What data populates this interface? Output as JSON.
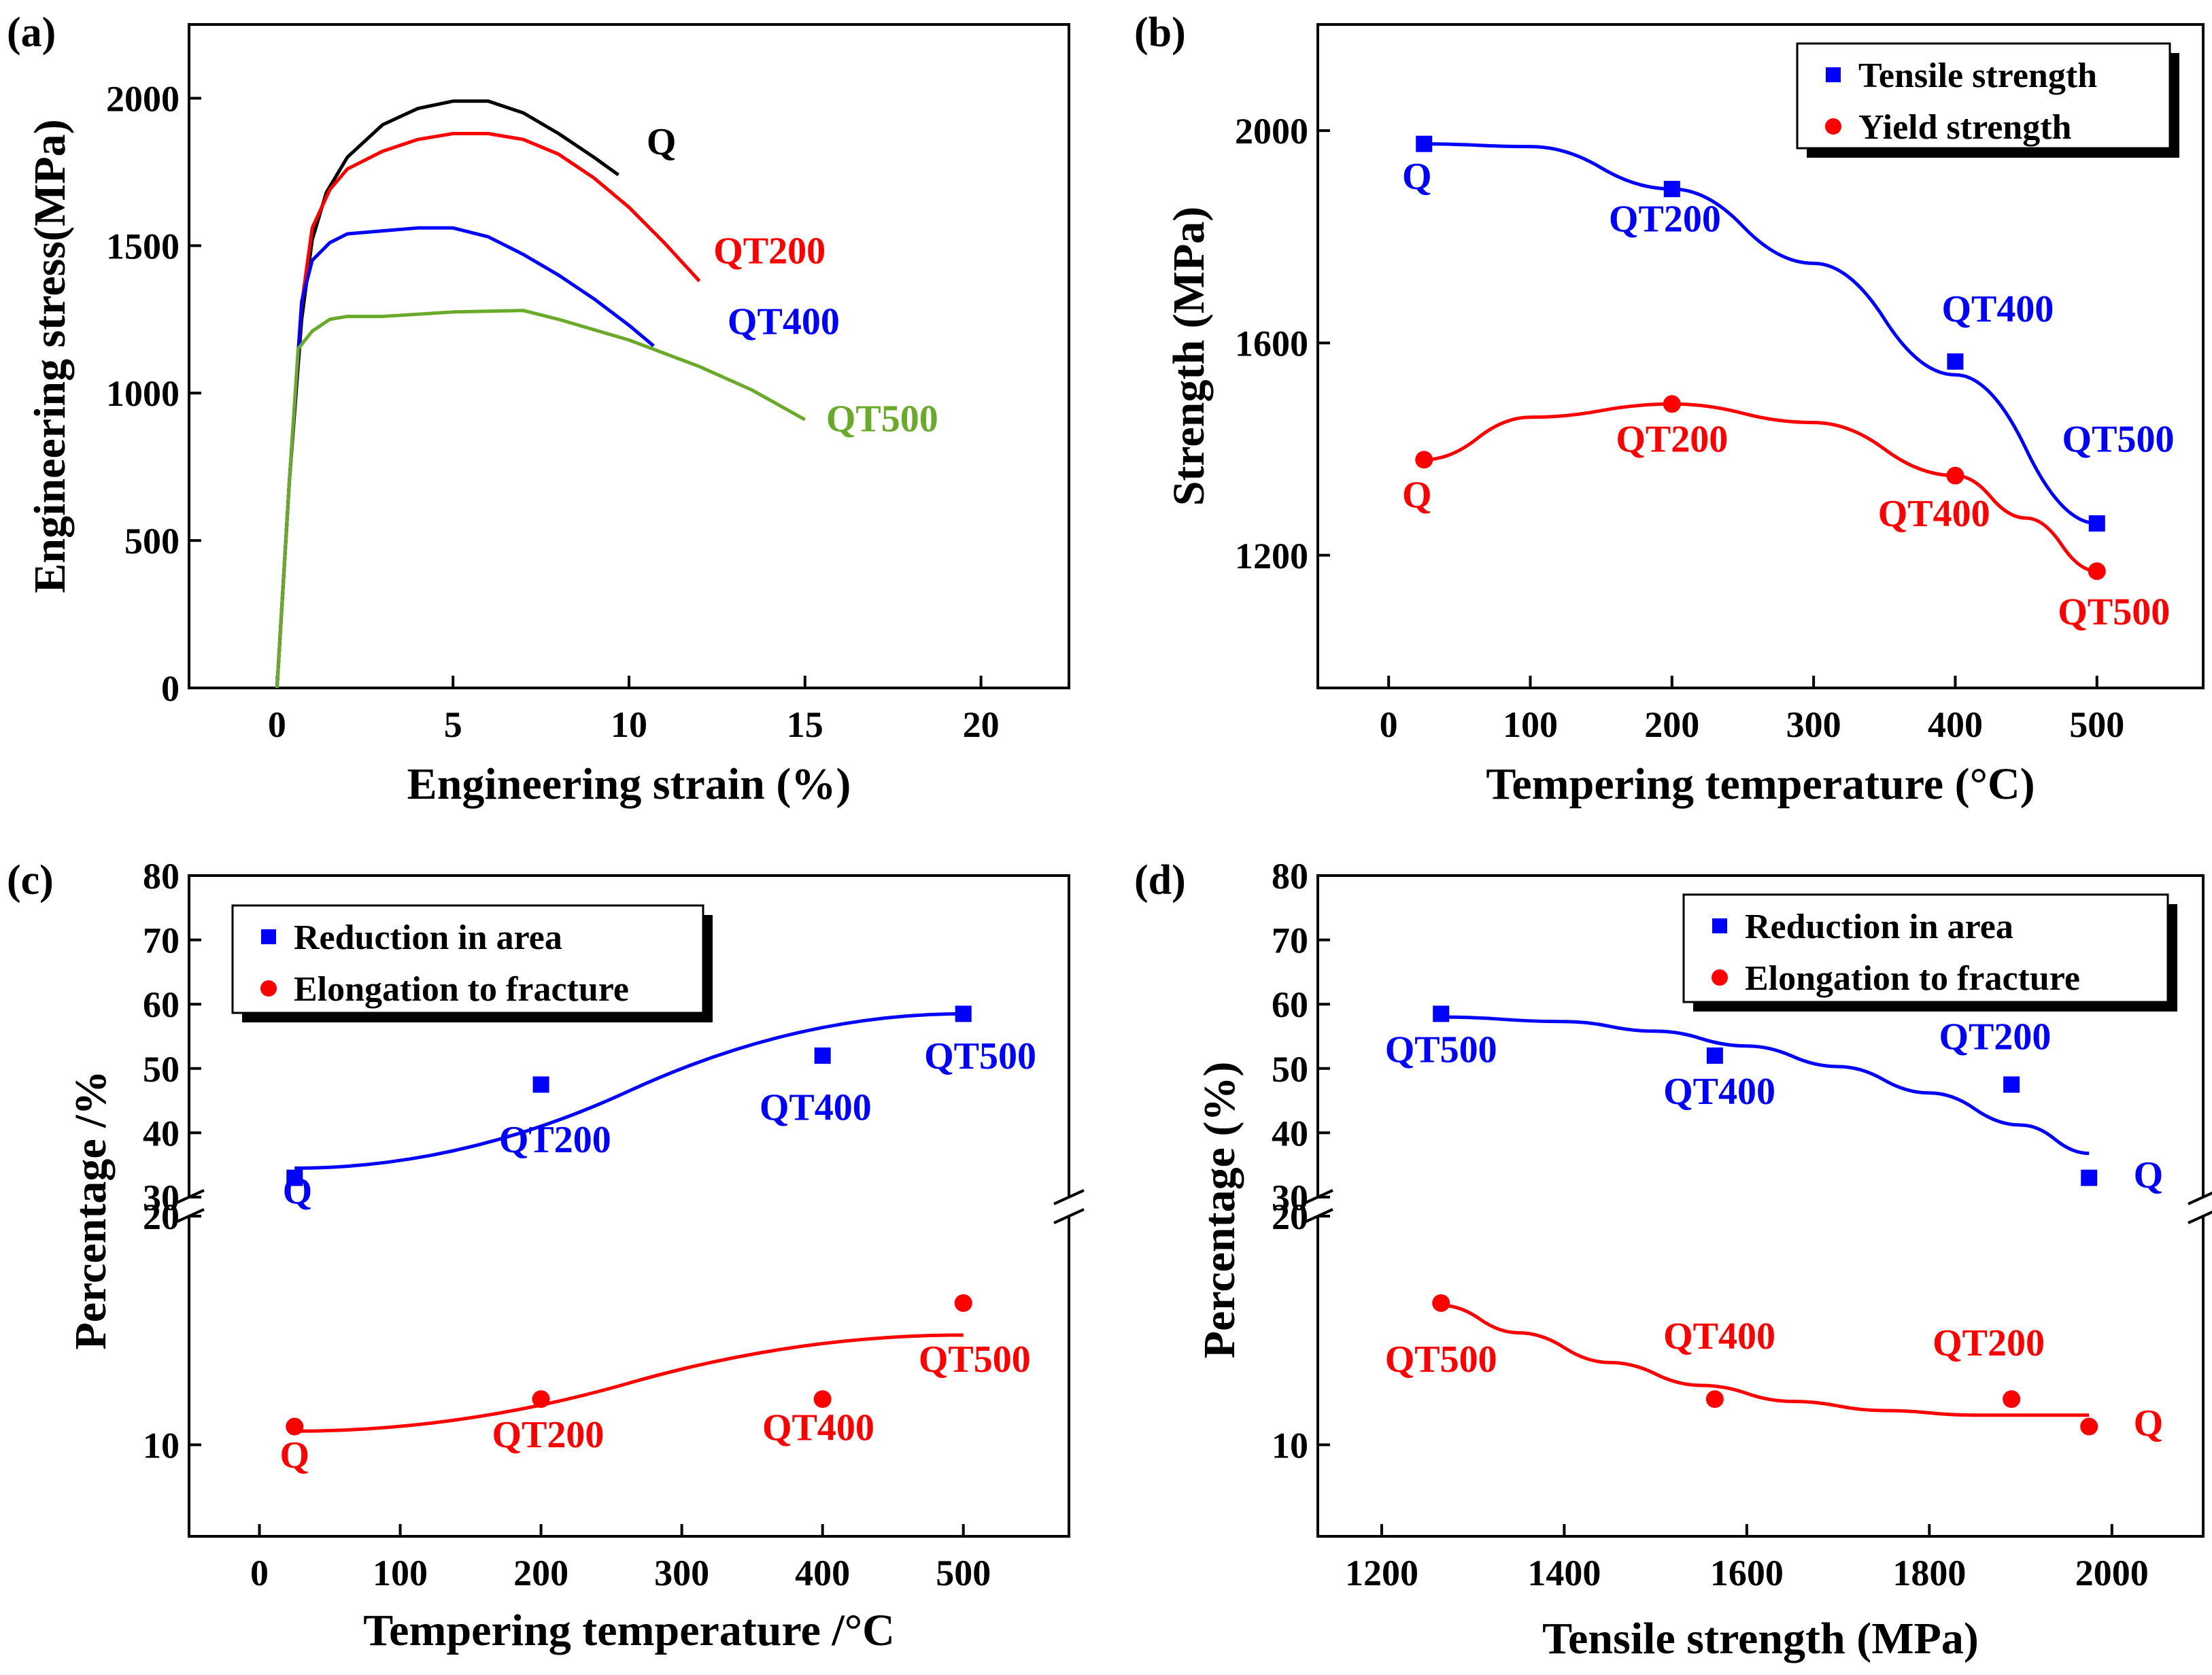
{
  "chart_data": [
    {
      "panel": "(a)",
      "type": "line",
      "xlabel": "Engineering strain (%)",
      "ylabel": "Engineering stress(MPa)",
      "xlim": [
        -2.5,
        22.5
      ],
      "ylim": [
        0,
        2250
      ],
      "xticks": [
        0,
        5,
        10,
        15,
        20
      ],
      "xtick_labels": [
        "0",
        "5",
        "10",
        "15",
        "20"
      ],
      "yticks": [
        0,
        500,
        1000,
        1500,
        2000
      ],
      "ytick_labels": [
        "0",
        "500",
        "1000",
        "1500",
        "2000"
      ],
      "series": [
        {
          "name": "Q",
          "label": "Q",
          "color": "#000000",
          "label_at": [
            10.5,
            1810
          ],
          "x": [
            0,
            0.35,
            0.7,
            1.0,
            1.4,
            2.0,
            3.0,
            4.0,
            5.0,
            6.0,
            7.0,
            8.0,
            9.0,
            9.7
          ],
          "y": [
            0,
            700,
            1250,
            1520,
            1680,
            1800,
            1910,
            1965,
            1990,
            1990,
            1950,
            1880,
            1800,
            1740
          ]
        },
        {
          "name": "QT200",
          "label": "QT200",
          "color": "#ff0000",
          "label_at": [
            12.4,
            1440
          ],
          "x": [
            0,
            0.35,
            0.7,
            1.0,
            1.5,
            2.0,
            3.0,
            4.0,
            5.0,
            6.0,
            7.0,
            8.0,
            9.0,
            10.0,
            11.0,
            12.0
          ],
          "y": [
            0,
            700,
            1300,
            1560,
            1690,
            1760,
            1820,
            1860,
            1880,
            1880,
            1860,
            1810,
            1730,
            1630,
            1510,
            1380
          ]
        },
        {
          "name": "QT400",
          "label": "QT400",
          "color": "#0000ff",
          "label_at": [
            12.8,
            1200
          ],
          "x": [
            0,
            0.35,
            0.7,
            1.0,
            1.5,
            2.0,
            3.0,
            4.0,
            5.0,
            6.0,
            7.0,
            8.0,
            9.0,
            10.0,
            10.7
          ],
          "y": [
            0,
            700,
            1310,
            1450,
            1510,
            1540,
            1550,
            1560,
            1560,
            1530,
            1470,
            1400,
            1320,
            1230,
            1160
          ]
        },
        {
          "name": "QT500",
          "label": "QT500",
          "color": "#6aaa2a",
          "label_at": [
            15.6,
            870
          ],
          "x": [
            0,
            0.35,
            0.6,
            1.0,
            1.5,
            2.0,
            3.0,
            5.0,
            7.0,
            8.0,
            10.0,
            12.0,
            13.5,
            15.0
          ],
          "y": [
            0,
            700,
            1150,
            1210,
            1250,
            1260,
            1260,
            1275,
            1280,
            1250,
            1180,
            1090,
            1010,
            910
          ]
        }
      ],
      "annotations": []
    },
    {
      "panel": "(b)",
      "type": "scatter",
      "xlabel": "Tempering temperature (°C)",
      "ylabel": "Strength (MPa)",
      "xlim": [
        -50,
        575
      ],
      "ylim": [
        950,
        2200
      ],
      "xticks": [
        0,
        100,
        200,
        300,
        400,
        500
      ],
      "xtick_labels": [
        "0",
        "100",
        "200",
        "300",
        "400",
        "500"
      ],
      "yticks": [
        1200,
        1600,
        2000
      ],
      "ytick_labels": [
        "1200",
        "1600",
        "2000"
      ],
      "legend_position": "top-right",
      "series": [
        {
          "name": "Tensile strength",
          "marker": "square",
          "color": "#0000ff",
          "x": [
            25,
            200,
            400,
            500
          ],
          "y": [
            1975,
            1890,
            1565,
            1260
          ],
          "fit": {
            "x": [
              25,
              100,
              200,
              300,
              400,
              500
            ],
            "y": [
              1975,
              1970,
              1890,
              1750,
              1540,
              1260
            ]
          }
        },
        {
          "name": "Yield strength",
          "marker": "circle",
          "color": "#ff0000",
          "x": [
            25,
            200,
            400,
            500
          ],
          "y": [
            1380,
            1485,
            1350,
            1170
          ],
          "fit": {
            "x": [
              25,
              100,
              200,
              300,
              400,
              450,
              500
            ],
            "y": [
              1380,
              1460,
              1485,
              1450,
              1350,
              1270,
              1170
            ]
          }
        }
      ],
      "annotations": [
        {
          "text": "Q",
          "color": "#0000ff",
          "x": 20,
          "y": 1890
        },
        {
          "text": "QT200",
          "color": "#0000ff",
          "x": 195,
          "y": 1810
        },
        {
          "text": "QT400",
          "color": "#0000ff",
          "x": 430,
          "y": 1640
        },
        {
          "text": "QT500",
          "color": "#0000ff",
          "x": 515,
          "y": 1395
        },
        {
          "text": "Q",
          "color": "#ff0000",
          "x": 20,
          "y": 1290
        },
        {
          "text": "QT200",
          "color": "#ff0000",
          "x": 200,
          "y": 1395
        },
        {
          "text": "QT400",
          "color": "#ff0000",
          "x": 385,
          "y": 1255
        },
        {
          "text": "QT500",
          "color": "#ff0000",
          "x": 512,
          "y": 1070
        }
      ]
    },
    {
      "panel": "(c)",
      "type": "scatter",
      "xlabel": "Tempering temperature /°C",
      "ylabel": "Percentage /%",
      "xlim": [
        -50,
        575
      ],
      "ylim_lower": [
        6,
        20
      ],
      "ylim_upper": [
        30,
        80
      ],
      "xticks": [
        0,
        100,
        200,
        300,
        400,
        500
      ],
      "xtick_labels": [
        "0",
        "100",
        "200",
        "300",
        "400",
        "500"
      ],
      "yticks_lower": [
        10,
        20
      ],
      "ytick_labels_lower": [
        "10",
        "20"
      ],
      "yticks_upper": [
        30,
        40,
        50,
        60,
        70,
        80
      ],
      "ytick_labels_upper": [
        "30",
        "40",
        "50",
        "60",
        "70",
        "80"
      ],
      "legend_position": "top-left",
      "series": [
        {
          "name": "Reduction in area",
          "marker": "square",
          "color": "#0000ff",
          "x": [
            25,
            200,
            400,
            500
          ],
          "y": [
            33,
            47.5,
            52,
            58.5
          ],
          "fit": {
            "x": [
              25,
              500
            ],
            "y": [
              34.5,
              58.5
            ]
          }
        },
        {
          "name": "Elongation to fracture",
          "marker": "circle",
          "color": "#ff0000",
          "x": [
            25,
            200,
            400,
            500
          ],
          "y": [
            10.8,
            12,
            12,
            16.2
          ],
          "fit": {
            "x": [
              25,
              500
            ],
            "y": [
              10.6,
              14.8
            ]
          }
        }
      ],
      "annotations": [
        {
          "text": "Q",
          "color": "#0000ff",
          "x": 27,
          "y": 29
        },
        {
          "text": "QT200",
          "color": "#0000ff",
          "x": 210,
          "y": 37
        },
        {
          "text": "QT400",
          "color": "#0000ff",
          "x": 395,
          "y": 42
        },
        {
          "text": "QT500",
          "color": "#0000ff",
          "x": 512,
          "y": 50
        },
        {
          "text": "Q",
          "color": "#ff0000",
          "x": 25,
          "y": 9.0
        },
        {
          "text": "QT200",
          "color": "#ff0000",
          "x": 205,
          "y": 9.9
        },
        {
          "text": "QT400",
          "color": "#ff0000",
          "x": 397,
          "y": 10.2
        },
        {
          "text": "QT500",
          "color": "#ff0000",
          "x": 508,
          "y": 13.2
        }
      ]
    },
    {
      "panel": "(d)",
      "type": "scatter",
      "xlabel": "Tensile strength (MPa)",
      "ylabel": "Percentage (%)",
      "xlim": [
        1130,
        2100
      ],
      "ylim_lower": [
        6,
        20
      ],
      "ylim_upper": [
        30,
        80
      ],
      "xticks": [
        1200,
        1400,
        1600,
        1800,
        2000
      ],
      "xtick_labels": [
        "1200",
        "1400",
        "1600",
        "1800",
        "2000"
      ],
      "yticks_lower": [
        10,
        20
      ],
      "ytick_labels_lower": [
        "10",
        "20"
      ],
      "yticks_upper": [
        30,
        40,
        50,
        60,
        70,
        80
      ],
      "ytick_labels_upper": [
        "30",
        "40",
        "50",
        "60",
        "70",
        "80"
      ],
      "legend_position": "top-right",
      "series": [
        {
          "name": "Reduction in area",
          "marker": "square",
          "color": "#0000ff",
          "x": [
            1265,
            1565,
            1890,
            1975
          ],
          "y": [
            58.5,
            52,
            47.5,
            33
          ],
          "fit": {
            "x": [
              1265,
              1400,
              1500,
              1600,
              1700,
              1800,
              1900,
              1975
            ],
            "y": [
              58,
              57.3,
              55.8,
              53.5,
              50.3,
              46.2,
              41.2,
              36.8
            ]
          }
        },
        {
          "name": "Elongation to fracture",
          "marker": "circle",
          "color": "#ff0000",
          "x": [
            1265,
            1565,
            1890,
            1975
          ],
          "y": [
            16.2,
            12,
            12,
            10.8
          ],
          "fit": {
            "x": [
              1265,
              1350,
              1450,
              1550,
              1650,
              1750,
              1850,
              1975
            ],
            "y": [
              16.1,
              14.9,
              13.6,
              12.6,
              11.9,
              11.5,
              11.3,
              11.3
            ]
          }
        }
      ],
      "annotations": [
        {
          "text": "QT500",
          "color": "#0000ff",
          "x": 1265,
          "y": 51
        },
        {
          "text": "QT400",
          "color": "#0000ff",
          "x": 1570,
          "y": 44.5
        },
        {
          "text": "QT200",
          "color": "#0000ff",
          "x": 1872,
          "y": 53
        },
        {
          "text": "Q",
          "color": "#0000ff",
          "x": 2040,
          "y": 31.5
        },
        {
          "text": "QT500",
          "color": "#ff0000",
          "x": 1265,
          "y": 13.2
        },
        {
          "text": "QT400",
          "color": "#ff0000",
          "x": 1570,
          "y": 14.2
        },
        {
          "text": "QT200",
          "color": "#ff0000",
          "x": 1865,
          "y": 13.9
        },
        {
          "text": "Q",
          "color": "#ff0000",
          "x": 2040,
          "y": 10.4
        }
      ]
    }
  ]
}
